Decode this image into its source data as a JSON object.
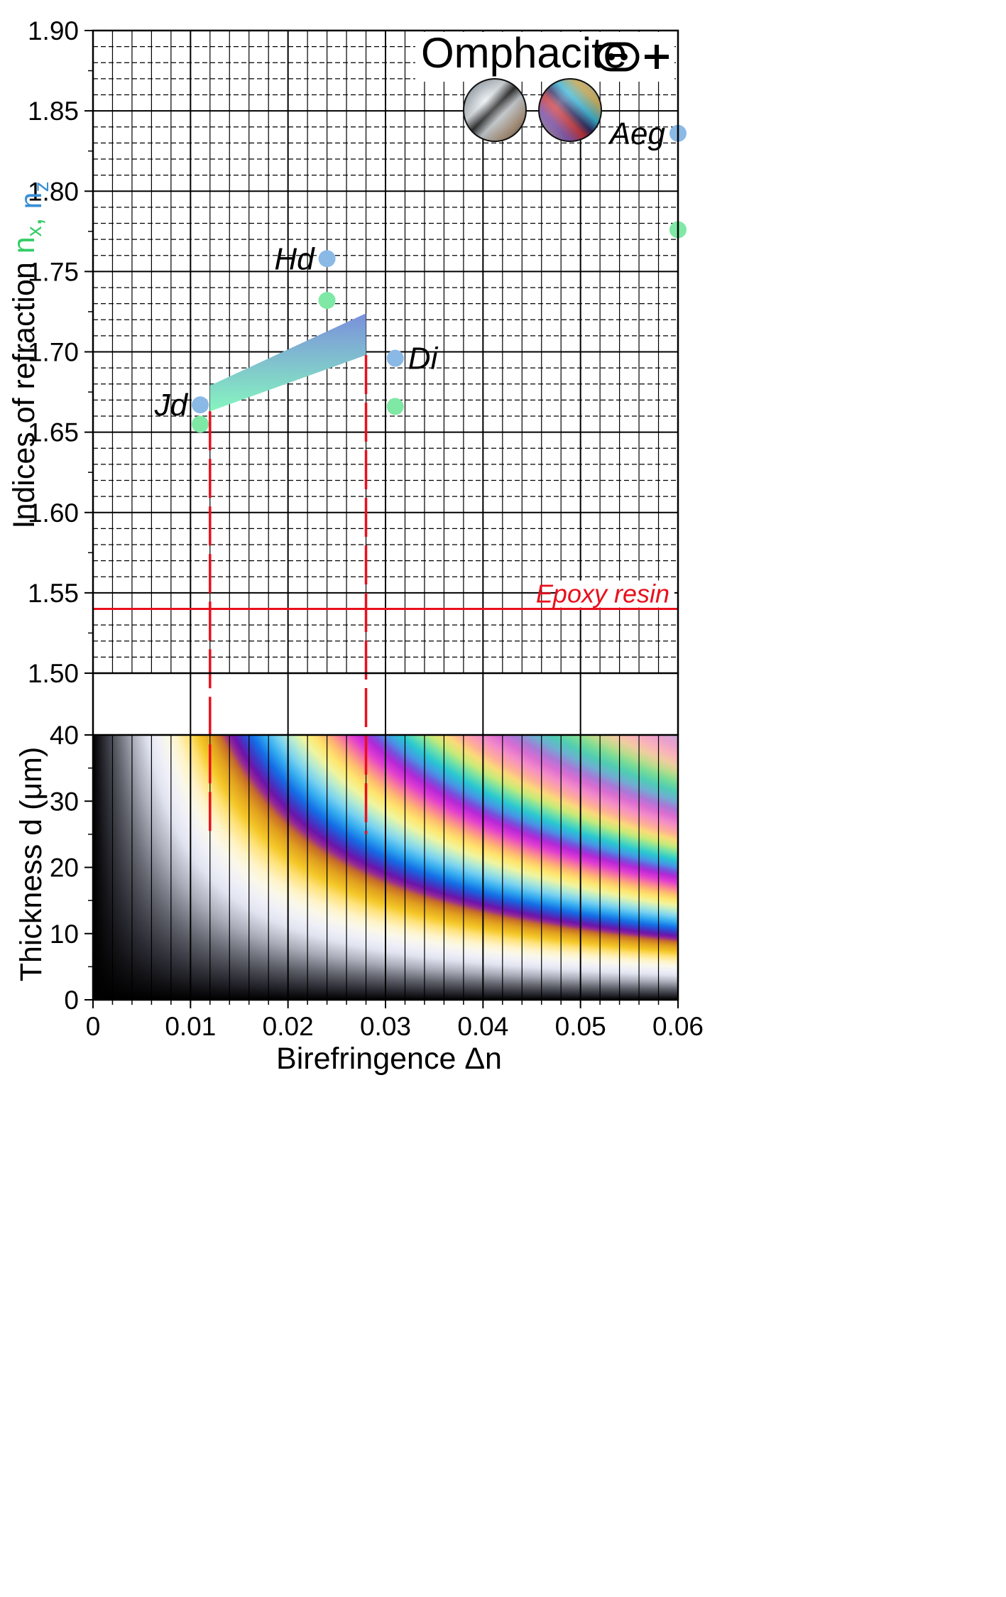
{
  "chart_data": {
    "type": "scatter",
    "title": "Omphacite",
    "ylabel_parts": [
      {
        "text": "Indices of refraction ",
        "color": "#000000"
      },
      {
        "text": "n",
        "sub": "x",
        "color": "#33cc66"
      },
      {
        "text": ", ",
        "color": "#33cc66"
      },
      {
        "text": "n",
        "sub": "z",
        "color": "#3a8fd6"
      }
    ],
    "xlabel": "Birefringence  Δn",
    "ylabel_bottom": "Thickness  d (μm)",
    "xlim": [
      0,
      0.06
    ],
    "x_ticks": [
      "0",
      "0.01",
      "0.02",
      "0.03",
      "0.04",
      "0.05",
      "0.06"
    ],
    "top_panel": {
      "ylim": [
        1.5,
        1.9
      ],
      "y_ticks": [
        "1.50",
        "1.55",
        "1.60",
        "1.65",
        "1.70",
        "1.75",
        "1.80",
        "1.85",
        "1.90"
      ],
      "minerals": [
        {
          "name": "Jd",
          "x": 0.011,
          "nz": 1.667,
          "nx": 1.655
        },
        {
          "name": "Hd",
          "x": 0.024,
          "nz": 1.758,
          "nx": 1.732
        },
        {
          "name": "Di",
          "x": 0.031,
          "nz": 1.696,
          "nx": 1.666
        },
        {
          "name": "Aeg",
          "x": 0.06,
          "nz": 1.836,
          "nx": 1.776
        }
      ],
      "omphacite_range": {
        "x": [
          0.012,
          0.028
        ],
        "nz_upper": [
          1.679,
          1.724
        ],
        "nx_lower": [
          1.663,
          1.698
        ]
      },
      "epoxy_resin": {
        "label": "Epoxy resin",
        "n": 1.54
      }
    },
    "bottom_panel": {
      "type": "heatmap",
      "description_key": "Michel-Lévy interference colors",
      "ylim": [
        0,
        40
      ],
      "y_ticks": [
        "0",
        "10",
        "20",
        "30",
        "40"
      ],
      "birefringence_markers": [
        0.012,
        0.028
      ],
      "marker_bottom_d": 25
    },
    "colors": {
      "nz": "#8ab9e6",
      "nx": "#7ee8a4",
      "resin": "#e8101c",
      "range_top": "#7f9be0",
      "range_bottom": "#7ff0b8"
    }
  }
}
